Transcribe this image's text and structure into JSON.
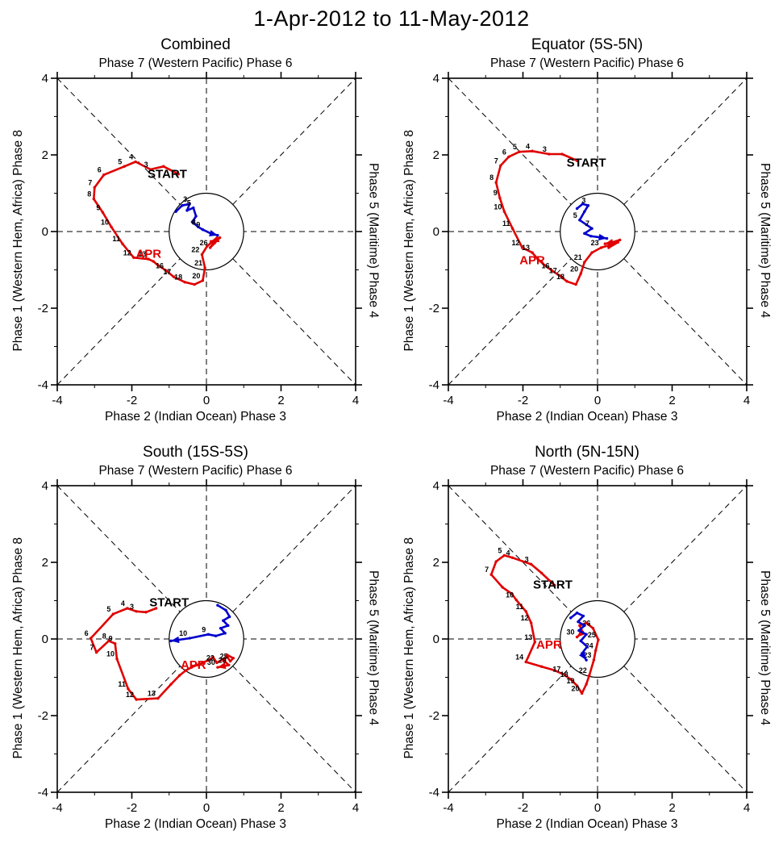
{
  "title": "1-Apr-2012 to 11-May-2012",
  "colors": {
    "apr": "#e00000",
    "may": "#0000cc",
    "axis": "#000000",
    "background": "#ffffff"
  },
  "chart_data": {
    "type": "line",
    "description": "MJO RMM phase-space trajectory diagrams, four panels; red = April days 1-30, blue = May days 1-11; unit circle at origin; dashed phase-separation lines",
    "axis": {
      "min": -4,
      "max": 4,
      "major_ticks": [
        -4,
        -2,
        0,
        2,
        4
      ],
      "minor_step": 1
    },
    "labels": {
      "top": "Phase 7 (Western Pacific) Phase 6",
      "bottom": "Phase 2 (Indian Ocean) Phase 3",
      "left": "Phase 1 (Western Hem, Africa) Phase 8",
      "right": "Phase 5 (Maritime) Phase 4"
    },
    "panels": [
      {
        "id": "combined",
        "title": "Combined",
        "start_label": {
          "text": "START",
          "x": -1.05,
          "y": 1.4
        },
        "series": [
          {
            "name": "APR",
            "color_key": "apr",
            "month_label": {
              "text": "APR",
              "x": -1.55,
              "y": -0.68
            },
            "points": [
              [
                -0.75,
                1.5,
                ""
              ],
              [
                -1.15,
                1.7,
                ""
              ],
              [
                -1.5,
                1.62,
                "3"
              ],
              [
                -1.9,
                1.82,
                "4"
              ],
              [
                -2.2,
                1.7,
                "5"
              ],
              [
                -2.75,
                1.48,
                "6"
              ],
              [
                -3.0,
                1.15,
                "7"
              ],
              [
                -3.02,
                0.85,
                "8"
              ],
              [
                -2.78,
                0.5,
                "9"
              ],
              [
                -2.55,
                0.12,
                "10"
              ],
              [
                -2.25,
                -0.32,
                "11"
              ],
              [
                -1.95,
                -0.68,
                "12"
              ],
              [
                -1.55,
                -0.72,
                "13"
              ],
              [
                -1.42,
                -0.78,
                ""
              ],
              [
                -1.3,
                -0.88,
                ""
              ],
              [
                -1.08,
                -1.02,
                "16"
              ],
              [
                -0.88,
                -1.18,
                "17"
              ],
              [
                -0.58,
                -1.32,
                "18"
              ],
              [
                -0.32,
                -1.38,
                ""
              ],
              [
                -0.1,
                -1.28,
                "20"
              ],
              [
                -0.04,
                -0.95,
                "21"
              ],
              [
                -0.12,
                -0.6,
                "22"
              ],
              [
                0.02,
                -0.38,
                ""
              ],
              [
                0.14,
                -0.28,
                ""
              ],
              [
                0.28,
                -0.18,
                ""
              ],
              [
                0.1,
                -0.42,
                "26"
              ],
              [
                0.22,
                -0.3,
                ""
              ],
              [
                0.36,
                -0.16,
                ""
              ],
              [
                0.24,
                -0.22,
                ""
              ],
              [
                0.12,
                -0.26,
                ""
              ]
            ]
          },
          {
            "name": "MAY",
            "color_key": "may",
            "points": [
              [
                -0.82,
                0.52,
                ""
              ],
              [
                -0.65,
                0.68,
                ""
              ],
              [
                -0.45,
                0.72,
                "3"
              ],
              [
                -0.52,
                0.55,
                ""
              ],
              [
                -0.35,
                0.62,
                "5"
              ],
              [
                -0.28,
                0.4,
                ""
              ],
              [
                -0.38,
                0.25,
                ""
              ],
              [
                -0.22,
                0.12,
                "8"
              ],
              [
                -0.1,
                0.05,
                "9"
              ],
              [
                0.12,
                -0.05,
                ""
              ],
              [
                0.3,
                -0.1,
                ""
              ]
            ]
          }
        ]
      },
      {
        "id": "equator",
        "title": "Equator (5S-5N)",
        "start_label": {
          "text": "START",
          "x": -0.3,
          "y": 1.7
        },
        "series": [
          {
            "name": "APR",
            "color_key": "apr",
            "month_label": {
              "text": "APR",
              "x": -1.75,
              "y": -0.85
            },
            "points": [
              [
                -0.55,
                1.85,
                ""
              ],
              [
                -0.95,
                2.02,
                ""
              ],
              [
                -1.3,
                2.02,
                "3"
              ],
              [
                -1.75,
                2.1,
                "4"
              ],
              [
                -2.1,
                2.08,
                "5"
              ],
              [
                -2.38,
                1.95,
                "6"
              ],
              [
                -2.6,
                1.72,
                "7"
              ],
              [
                -2.72,
                1.28,
                "8"
              ],
              [
                -2.62,
                0.88,
                "9"
              ],
              [
                -2.5,
                0.52,
                "10"
              ],
              [
                -2.28,
                0.08,
                "11"
              ],
              [
                -2.02,
                -0.42,
                "12"
              ],
              [
                -1.75,
                -0.55,
                "13"
              ],
              [
                -1.6,
                -0.72,
                ""
              ],
              [
                -1.42,
                -0.88,
                ""
              ],
              [
                -1.22,
                -1.02,
                "16"
              ],
              [
                -1.02,
                -1.15,
                "17"
              ],
              [
                -0.82,
                -1.3,
                "18"
              ],
              [
                -0.58,
                -1.38,
                ""
              ],
              [
                -0.45,
                -1.1,
                "20"
              ],
              [
                -0.35,
                -0.8,
                "21"
              ],
              [
                -0.15,
                -0.55,
                ""
              ],
              [
                0.1,
                -0.42,
                "23"
              ],
              [
                0.35,
                -0.35,
                ""
              ],
              [
                0.55,
                -0.28,
                ""
              ],
              [
                0.3,
                -0.42,
                ""
              ],
              [
                0.45,
                -0.3,
                ""
              ],
              [
                0.6,
                -0.22,
                ""
              ],
              [
                0.4,
                -0.28,
                ""
              ],
              [
                0.2,
                -0.32,
                ""
              ]
            ]
          },
          {
            "name": "MAY",
            "color_key": "may",
            "points": [
              [
                -0.55,
                0.6,
                ""
              ],
              [
                -0.4,
                0.72,
                ""
              ],
              [
                -0.25,
                0.68,
                "3"
              ],
              [
                -0.35,
                0.52,
                ""
              ],
              [
                -0.48,
                0.3,
                "5"
              ],
              [
                -0.3,
                0.18,
                ""
              ],
              [
                -0.15,
                0.08,
                "7"
              ],
              [
                -0.35,
                -0.05,
                ""
              ],
              [
                -0.18,
                -0.12,
                ""
              ],
              [
                0.05,
                -0.15,
                ""
              ],
              [
                0.25,
                -0.18,
                ""
              ]
            ]
          }
        ]
      },
      {
        "id": "south",
        "title": "South (15S-5S)",
        "start_label": {
          "text": "START",
          "x": -1.0,
          "y": 0.85
        },
        "series": [
          {
            "name": "APR",
            "color_key": "apr",
            "month_label": {
              "text": "APR",
              "x": -0.35,
              "y": -0.78
            },
            "points": [
              [
                -1.35,
                0.8,
                ""
              ],
              [
                -1.62,
                0.7,
                ""
              ],
              [
                -1.88,
                0.72,
                "3"
              ],
              [
                -2.12,
                0.8,
                "4"
              ],
              [
                -2.5,
                0.65,
                "5"
              ],
              [
                -3.1,
                0.02,
                "6"
              ],
              [
                -2.95,
                -0.35,
                "7"
              ],
              [
                -2.62,
                -0.05,
                "8"
              ],
              [
                -2.45,
                -0.12,
                "9"
              ],
              [
                -2.4,
                -0.52,
                "10"
              ],
              [
                -2.1,
                -1.3,
                "11"
              ],
              [
                -1.88,
                -1.58,
                "12"
              ],
              [
                -1.3,
                -1.55,
                "13"
              ],
              [
                -0.95,
                -1.18,
                ""
              ],
              [
                -0.72,
                -0.95,
                ""
              ],
              [
                -0.55,
                -0.82,
                ""
              ],
              [
                -0.4,
                -0.74,
                ""
              ],
              [
                -0.25,
                -0.68,
                ""
              ],
              [
                -0.1,
                -0.62,
                ""
              ],
              [
                0.04,
                -0.56,
                ""
              ],
              [
                0.18,
                -0.48,
                ""
              ],
              [
                0.28,
                -0.62,
                "22"
              ],
              [
                0.42,
                -0.54,
                ""
              ],
              [
                0.55,
                -0.46,
                ""
              ],
              [
                0.64,
                -0.58,
                "25"
              ],
              [
                0.72,
                -0.5,
                ""
              ],
              [
                0.56,
                -0.42,
                ""
              ],
              [
                0.46,
                -0.56,
                ""
              ],
              [
                0.6,
                -0.68,
                "29"
              ],
              [
                0.3,
                -0.74,
                "30"
              ]
            ]
          },
          {
            "name": "MAY",
            "color_key": "may",
            "points": [
              [
                0.3,
                0.88,
                ""
              ],
              [
                0.52,
                0.75,
                ""
              ],
              [
                0.62,
                0.58,
                ""
              ],
              [
                0.45,
                0.48,
                ""
              ],
              [
                0.58,
                0.35,
                ""
              ],
              [
                0.38,
                0.28,
                ""
              ],
              [
                0.5,
                0.15,
                ""
              ],
              [
                0.25,
                0.08,
                ""
              ],
              [
                0.05,
                0.12,
                "9"
              ],
              [
                -0.45,
                0.02,
                "10"
              ],
              [
                -0.95,
                -0.05,
                ""
              ]
            ]
          }
        ]
      },
      {
        "id": "north",
        "title": "North (5N-15N)",
        "start_label": {
          "text": "START",
          "x": -1.2,
          "y": 1.32
        },
        "series": [
          {
            "name": "APR",
            "color_key": "apr",
            "month_label": {
              "text": "APR",
              "x": -1.3,
              "y": -0.25
            },
            "points": [
              [
                -1.15,
                1.4,
                ""
              ],
              [
                -1.5,
                1.72,
                ""
              ],
              [
                -1.78,
                1.95,
                "3"
              ],
              [
                -2.28,
                2.12,
                "4"
              ],
              [
                -2.5,
                2.18,
                "5"
              ],
              [
                -2.72,
                2.02,
                ""
              ],
              [
                -2.85,
                1.68,
                "7"
              ],
              [
                -2.55,
                1.35,
                ""
              ],
              [
                -2.3,
                1.18,
                ""
              ],
              [
                -2.18,
                1.02,
                "10"
              ],
              [
                -1.92,
                0.72,
                "11"
              ],
              [
                -1.78,
                0.42,
                "12"
              ],
              [
                -1.68,
                -0.08,
                "13"
              ],
              [
                -1.92,
                -0.6,
                "14"
              ],
              [
                -1.5,
                -0.72,
                ""
              ],
              [
                -1.15,
                -0.82,
                ""
              ],
              [
                -0.92,
                -0.92,
                "17"
              ],
              [
                -0.72,
                -1.05,
                "18"
              ],
              [
                -0.55,
                -1.22,
                "19"
              ],
              [
                -0.42,
                -1.42,
                "20"
              ],
              [
                -0.3,
                -1.18,
                ""
              ],
              [
                -0.22,
                -0.95,
                "22"
              ],
              [
                -0.1,
                -0.55,
                "23"
              ],
              [
                -0.05,
                -0.3,
                "24"
              ],
              [
                0.02,
                -0.02,
                "25"
              ],
              [
                -0.12,
                0.28,
                "26"
              ],
              [
                -0.3,
                0.42,
                ""
              ],
              [
                -0.48,
                0.35,
                ""
              ],
              [
                -0.4,
                0.18,
                ""
              ],
              [
                -0.55,
                0.05,
                "30"
              ]
            ]
          },
          {
            "name": "MAY",
            "color_key": "may",
            "points": [
              [
                -0.72,
                0.55,
                ""
              ],
              [
                -0.55,
                0.68,
                ""
              ],
              [
                -0.38,
                0.6,
                ""
              ],
              [
                -0.52,
                0.45,
                ""
              ],
              [
                -0.35,
                0.35,
                ""
              ],
              [
                -0.5,
                0.22,
                ""
              ],
              [
                -0.3,
                0.12,
                ""
              ],
              [
                -0.45,
                -0.05,
                ""
              ],
              [
                -0.28,
                -0.2,
                ""
              ],
              [
                -0.42,
                -0.38,
                ""
              ],
              [
                -0.3,
                -0.55,
                ""
              ]
            ]
          }
        ]
      }
    ]
  }
}
